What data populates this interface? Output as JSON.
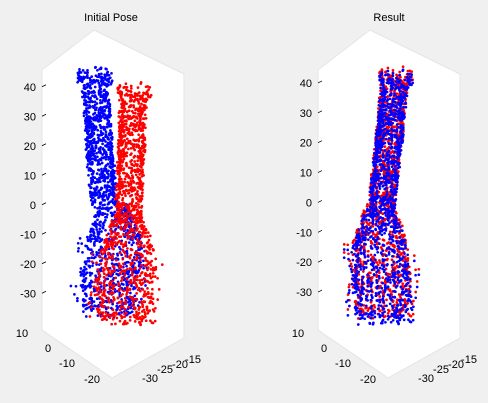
{
  "figure": {
    "background": "#f0f0f0",
    "axes_background": "#ffffff",
    "box_color": "#e6e6e6",
    "colors": {
      "initial_series": "#0000ff",
      "target_series": "#ff0000"
    }
  },
  "chart_data": [
    {
      "type": "scatter",
      "title": "Initial Pose",
      "xlabel": "",
      "ylabel": "",
      "zlabel": "",
      "grid": false,
      "legend": "none",
      "zlim": [
        -35,
        45
      ],
      "z_ticks": [
        -30,
        -20,
        -10,
        0,
        10,
        20,
        30,
        40
      ],
      "x_ticks": [
        10,
        0,
        -10,
        -20
      ],
      "y_ticks": [
        -30,
        -25,
        -20,
        -15
      ],
      "series": [
        {
          "color": "#0000ff",
          "shape": "femur-initial",
          "z_range": [
            -37,
            45
          ],
          "point_count": 1600,
          "values": [
            {
              "z": 44,
              "x": -6,
              "y": -25
            },
            {
              "z": 30,
              "x": -4,
              "y": -26
            },
            {
              "z": 10,
              "x": -3,
              "y": -26
            },
            {
              "z": -10,
              "x": 2,
              "y": -26
            },
            {
              "z": -25,
              "x": 6,
              "y": -25
            },
            {
              "z": -32,
              "x": 4,
              "y": -24
            }
          ]
        },
        {
          "color": "#ff0000",
          "shape": "femur-target",
          "z_range": [
            -40,
            40
          ],
          "point_count": 1400,
          "values": [
            {
              "z": 38,
              "x": -18,
              "y": -20
            },
            {
              "z": 20,
              "x": -16,
              "y": -22
            },
            {
              "z": 0,
              "x": -12,
              "y": -23
            },
            {
              "z": -15,
              "x": -8,
              "y": -24
            },
            {
              "z": -28,
              "x": -12,
              "y": -22
            },
            {
              "z": -38,
              "x": -14,
              "y": -20
            }
          ]
        }
      ]
    },
    {
      "type": "scatter",
      "title": "Result",
      "xlabel": "",
      "ylabel": "",
      "zlabel": "",
      "grid": false,
      "legend": "none",
      "zlim": [
        -35,
        45
      ],
      "z_ticks": [
        -30,
        -20,
        -10,
        0,
        10,
        20,
        30,
        40
      ],
      "x_ticks": [
        10,
        0,
        -10,
        -20
      ],
      "y_ticks": [
        -30,
        -25,
        -20,
        -15
      ],
      "series": [
        {
          "color": "#ff0000",
          "shape": "femur-aligned",
          "z_range": [
            -38,
            44
          ],
          "point_count": 1400,
          "values": [
            {
              "z": 42,
              "x": -12,
              "y": -20
            },
            {
              "z": 20,
              "x": -10,
              "y": -21
            },
            {
              "z": 0,
              "x": -8,
              "y": -22
            },
            {
              "z": -15,
              "x": -3,
              "y": -24
            },
            {
              "z": -30,
              "x": -4,
              "y": -23
            }
          ]
        },
        {
          "color": "#0000ff",
          "shape": "femur-aligned",
          "z_range": [
            -40,
            43
          ],
          "point_count": 1500,
          "values": [
            {
              "z": 41,
              "x": -12,
              "y": -20
            },
            {
              "z": 20,
              "x": -10,
              "y": -21
            },
            {
              "z": 0,
              "x": -8,
              "y": -22
            },
            {
              "z": -15,
              "x": -3,
              "y": -24
            },
            {
              "z": -30,
              "x": -4,
              "y": -23
            }
          ]
        }
      ]
    }
  ]
}
